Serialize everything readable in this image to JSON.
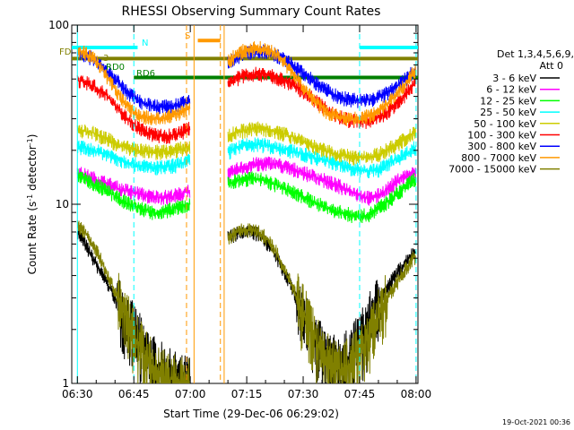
{
  "chart_data": {
    "type": "line",
    "title": "RHESSI Observing Summary Count Rates",
    "xlabel": "Start Time (29-Dec-06 06:29:02)",
    "ylabel_main": "Count Rate (s",
    "ylabel_sup1": "-1",
    "ylabel_mid": " detector",
    "ylabel_sup2": "-1",
    "ylabel_end": ")",
    "yscale": "log",
    "ylim": [
      1,
      100
    ],
    "xlim_minutes": [
      -1.5,
      90.5
    ],
    "x_ticks": [
      {
        "t": 0,
        "label": "06:30"
      },
      {
        "t": 15,
        "label": "06:45"
      },
      {
        "t": 30,
        "label": "07:00"
      },
      {
        "t": 45,
        "label": "07:15"
      },
      {
        "t": 60,
        "label": "07:30"
      },
      {
        "t": 75,
        "label": "07:45"
      },
      {
        "t": 90,
        "label": "08:00"
      }
    ],
    "y_ticks": [
      {
        "v": 1,
        "label": "1"
      },
      {
        "v": 10,
        "label": "10"
      },
      {
        "v": 100,
        "label": "100"
      }
    ],
    "legend_header1": "Det 1,3,4,5,6,9,",
    "legend_header2": "Att 0",
    "legend_position": "right",
    "series": [
      {
        "name": "3 - 6 keV",
        "color": "#000000",
        "x": [
          0,
          2,
          4,
          6,
          8,
          10,
          12,
          14,
          16,
          18,
          20,
          22,
          24,
          26,
          28,
          30,
          40,
          42,
          44,
          46,
          48,
          50,
          52,
          54,
          56,
          58,
          60,
          62,
          64,
          66,
          68,
          70,
          72,
          74,
          76,
          78,
          80,
          82,
          84,
          86,
          88,
          90
        ],
        "y": [
          7,
          6,
          5,
          4.2,
          3.6,
          3,
          2.5,
          2.1,
          1.8,
          1.5,
          1.3,
          1.2,
          1.1,
          1.05,
          1.0,
          1.0,
          6.5,
          6.8,
          7,
          7,
          6.8,
          6.2,
          5.5,
          4.5,
          3.8,
          3,
          2.4,
          1.9,
          1.6,
          1.4,
          1.3,
          1.3,
          1.4,
          1.6,
          1.9,
          2.3,
          2.8,
          3.3,
          3.9,
          4.4,
          5,
          5.5
        ]
      },
      {
        "name": "6 - 12 keV",
        "color": "#ff00ff",
        "x": [
          0,
          2,
          4,
          6,
          8,
          10,
          12,
          14,
          16,
          18,
          20,
          22,
          24,
          26,
          28,
          30,
          40,
          42,
          44,
          46,
          48,
          50,
          52,
          54,
          56,
          58,
          60,
          62,
          64,
          66,
          68,
          70,
          72,
          74,
          76,
          78,
          80,
          82,
          84,
          86,
          88,
          90
        ],
        "y": [
          15,
          14.5,
          14,
          13.5,
          13,
          12.5,
          12,
          11.8,
          11.5,
          11.2,
          11,
          11,
          11,
          11.2,
          11.5,
          12,
          14.5,
          15.5,
          16,
          16.5,
          16.8,
          17,
          16.8,
          16.5,
          16,
          15.5,
          15,
          14.5,
          14,
          13.5,
          13,
          12.5,
          12,
          11.5,
          11,
          10.8,
          11.2,
          12,
          13,
          14,
          14.5,
          15
        ]
      },
      {
        "name": "12 - 25 keV",
        "color": "#00ff00",
        "x": [
          0,
          2,
          4,
          6,
          8,
          10,
          12,
          14,
          16,
          18,
          20,
          22,
          24,
          26,
          28,
          30,
          40,
          42,
          44,
          46,
          48,
          50,
          52,
          54,
          56,
          58,
          60,
          62,
          64,
          66,
          68,
          70,
          72,
          74,
          76,
          78,
          80,
          82,
          84,
          86,
          88,
          90
        ],
        "y": [
          14.5,
          14,
          13,
          12.5,
          11.8,
          11,
          10.5,
          10,
          9.6,
          9.3,
          9,
          9,
          9.2,
          9.5,
          9.8,
          10,
          13,
          13.5,
          13.8,
          13.9,
          13.8,
          13.5,
          13,
          12.5,
          12,
          11.5,
          11,
          10.5,
          10,
          9.6,
          9.2,
          9,
          8.8,
          8.6,
          8.6,
          8.9,
          9.5,
          10.2,
          11,
          12,
          13,
          14
        ]
      },
      {
        "name": "25 - 50 keV",
        "color": "#00ffff",
        "x": [
          0,
          2,
          4,
          6,
          8,
          10,
          12,
          14,
          16,
          18,
          20,
          22,
          24,
          26,
          28,
          30,
          40,
          42,
          44,
          46,
          48,
          50,
          52,
          54,
          56,
          58,
          60,
          62,
          64,
          66,
          68,
          70,
          72,
          74,
          76,
          78,
          80,
          82,
          84,
          86,
          88,
          90
        ],
        "y": [
          21,
          20.5,
          20,
          19.5,
          19,
          18.2,
          17.5,
          17,
          16.5,
          16.2,
          16,
          16,
          16.2,
          16.5,
          17,
          17.5,
          19.5,
          20.5,
          21.2,
          21.5,
          21.5,
          21.3,
          21,
          20.5,
          20,
          19.5,
          19,
          18.5,
          18,
          17.5,
          17,
          16.5,
          16,
          15.6,
          15.3,
          15.3,
          15.6,
          16.5,
          17.5,
          18.5,
          19.5,
          21
        ]
      },
      {
        "name": "50 - 100 keV",
        "color": "#cccc00",
        "x": [
          0,
          2,
          4,
          6,
          8,
          10,
          12,
          14,
          16,
          18,
          20,
          22,
          24,
          26,
          28,
          30,
          40,
          42,
          44,
          46,
          48,
          50,
          52,
          54,
          56,
          58,
          60,
          62,
          64,
          66,
          68,
          70,
          72,
          74,
          76,
          78,
          80,
          82,
          84,
          86,
          88,
          90
        ],
        "y": [
          26,
          25.5,
          25,
          24,
          23,
          22,
          21,
          20.5,
          20,
          19.8,
          19.6,
          19.6,
          19.8,
          20,
          20.5,
          21,
          24,
          25,
          25.8,
          26.2,
          26.5,
          26.2,
          25.8,
          25,
          24.2,
          23.5,
          22.5,
          21.5,
          20.5,
          19.8,
          19.2,
          18.8,
          18.5,
          18.2,
          18.2,
          18.5,
          19,
          20,
          21,
          22.5,
          24,
          26
        ]
      },
      {
        "name": "100 - 300 keV",
        "color": "#ff0000",
        "x": [
          0,
          2,
          4,
          6,
          8,
          10,
          12,
          14,
          16,
          18,
          20,
          22,
          24,
          26,
          28,
          30,
          40,
          42,
          44,
          46,
          48,
          50,
          52,
          54,
          56,
          58,
          60,
          62,
          64,
          66,
          68,
          70,
          72,
          74,
          76,
          78,
          80,
          82,
          84,
          86,
          88,
          90
        ],
        "y": [
          49,
          48,
          46,
          43,
          40,
          36,
          32,
          29,
          27,
          25.5,
          24.5,
          24,
          24,
          24.5,
          25.5,
          27,
          48,
          50,
          52,
          53,
          53.5,
          53,
          52,
          50,
          48,
          45.5,
          42.5,
          39.5,
          36.5,
          34,
          32,
          30.5,
          29.5,
          29,
          29,
          29.5,
          30.5,
          32.5,
          35,
          38.5,
          43,
          48
        ]
      },
      {
        "name": "300 - 800 keV",
        "color": "#0000ff",
        "x": [
          0,
          2,
          4,
          6,
          8,
          10,
          12,
          14,
          16,
          18,
          20,
          22,
          24,
          26,
          28,
          30,
          40,
          42,
          44,
          46,
          48,
          50,
          52,
          54,
          56,
          58,
          60,
          62,
          64,
          66,
          68,
          70,
          72,
          74,
          76,
          78,
          80,
          82,
          84,
          86,
          88,
          90
        ],
        "y": [
          70,
          68,
          65,
          60,
          55,
          50,
          45,
          41,
          38,
          36.5,
          35.5,
          35,
          35,
          35.5,
          36.5,
          38,
          62,
          66,
          69,
          71,
          72,
          71,
          69,
          66,
          62,
          58,
          54,
          50,
          46.5,
          43.5,
          41,
          39.5,
          38.5,
          38,
          38,
          38.5,
          39.5,
          41.5,
          44,
          47.5,
          52,
          57
        ]
      },
      {
        "name": "800 - 7000 keV",
        "color": "#ff9900",
        "x": [
          0,
          2,
          4,
          6,
          8,
          10,
          12,
          14,
          16,
          18,
          20,
          22,
          24,
          26,
          28,
          30,
          40,
          42,
          44,
          46,
          48,
          50,
          52,
          54,
          56,
          58,
          60,
          62,
          64,
          66,
          68,
          70,
          72,
          74,
          76,
          78,
          80,
          82,
          84,
          86,
          88,
          90
        ],
        "y": [
          72,
          70,
          66,
          59,
          51,
          44,
          38,
          34,
          31.5,
          30.5,
          30,
          30,
          30.5,
          31.5,
          33,
          35,
          62,
          68,
          72,
          74,
          74.5,
          73,
          70,
          65,
          58,
          51,
          45,
          40,
          36,
          33,
          31.5,
          30.5,
          30,
          30,
          30.5,
          31.5,
          33.5,
          36,
          39.5,
          44,
          50,
          56
        ]
      },
      {
        "name": "7000 - 15000 keV",
        "color": "#808000",
        "x": [
          0,
          2,
          4,
          6,
          8,
          10,
          12,
          14,
          16,
          18,
          20,
          22,
          24,
          26,
          28,
          30,
          40,
          42,
          44,
          46,
          48,
          50,
          52,
          54,
          56,
          58,
          60,
          62,
          64,
          66,
          68,
          70,
          72,
          74,
          76,
          78,
          80,
          82,
          84,
          86,
          88,
          90
        ],
        "y": [
          7.5,
          7,
          6,
          5,
          4,
          3.2,
          2.6,
          2.1,
          1.7,
          1.4,
          1.2,
          1.1,
          1.05,
          1.0,
          1.0,
          1.0,
          6.5,
          7,
          7.2,
          7.2,
          7,
          6.5,
          5.8,
          4.8,
          3.9,
          3.1,
          2.5,
          2,
          1.6,
          1.4,
          1.25,
          1.2,
          1.25,
          1.4,
          1.6,
          2,
          2.4,
          2.9,
          3.4,
          4,
          4.6,
          5.2
        ]
      }
    ],
    "flags": [
      {
        "label": "FD",
        "color": "#808000"
      },
      {
        "label": "N",
        "color": "#00ffff"
      },
      {
        "label": "S",
        "color": "#ff9900"
      },
      {
        "label": "RD0",
        "color": "#008000"
      },
      {
        "label": "RD6",
        "color": "#008000"
      },
      {
        "label": "3",
        "color": "#808000"
      }
    ],
    "flag_bars": [
      {
        "name": "fd-bar",
        "color": "#808000",
        "y": 65,
        "x0": -1.5,
        "x1": 90.5
      },
      {
        "name": "rd-bar",
        "color": "#008000",
        "y": 51,
        "x0": 15,
        "x1": 90.5
      },
      {
        "name": "n-bar-a",
        "color": "#00ffff",
        "y": 75,
        "x0": -1.5,
        "x1": 16
      },
      {
        "name": "n-bar-b",
        "color": "#00ffff",
        "y": 75,
        "x0": 75,
        "x1": 90.5
      },
      {
        "name": "s-bar",
        "color": "#ff9900",
        "y": 82,
        "x0": 32,
        "x1": 38
      }
    ],
    "v_lines": [
      {
        "name": "saa-start",
        "t": 31,
        "color": "#ff9900",
        "style": "solid"
      },
      {
        "name": "saa-end",
        "t": 39,
        "color": "#ff9900",
        "style": "solid"
      },
      {
        "name": "night-start",
        "t": 15,
        "color": "#00ffff",
        "style": "dashed"
      },
      {
        "name": "night-end",
        "t": 75,
        "color": "#00ffff",
        "style": "dashed"
      },
      {
        "name": "day-start",
        "t": 0,
        "color": "#00ffff",
        "style": "solid"
      },
      {
        "name": "day-end",
        "t": 90,
        "color": "#00ffff",
        "style": "dashed"
      },
      {
        "name": "attn-start",
        "t": 29,
        "color": "#ff9900",
        "style": "dashed"
      },
      {
        "name": "attn-end",
        "t": 38,
        "color": "#ff9900",
        "style": "dashed"
      }
    ],
    "gap": [
      31,
      40
    ]
  },
  "footer_date": "19-Oct-2021 00:36"
}
